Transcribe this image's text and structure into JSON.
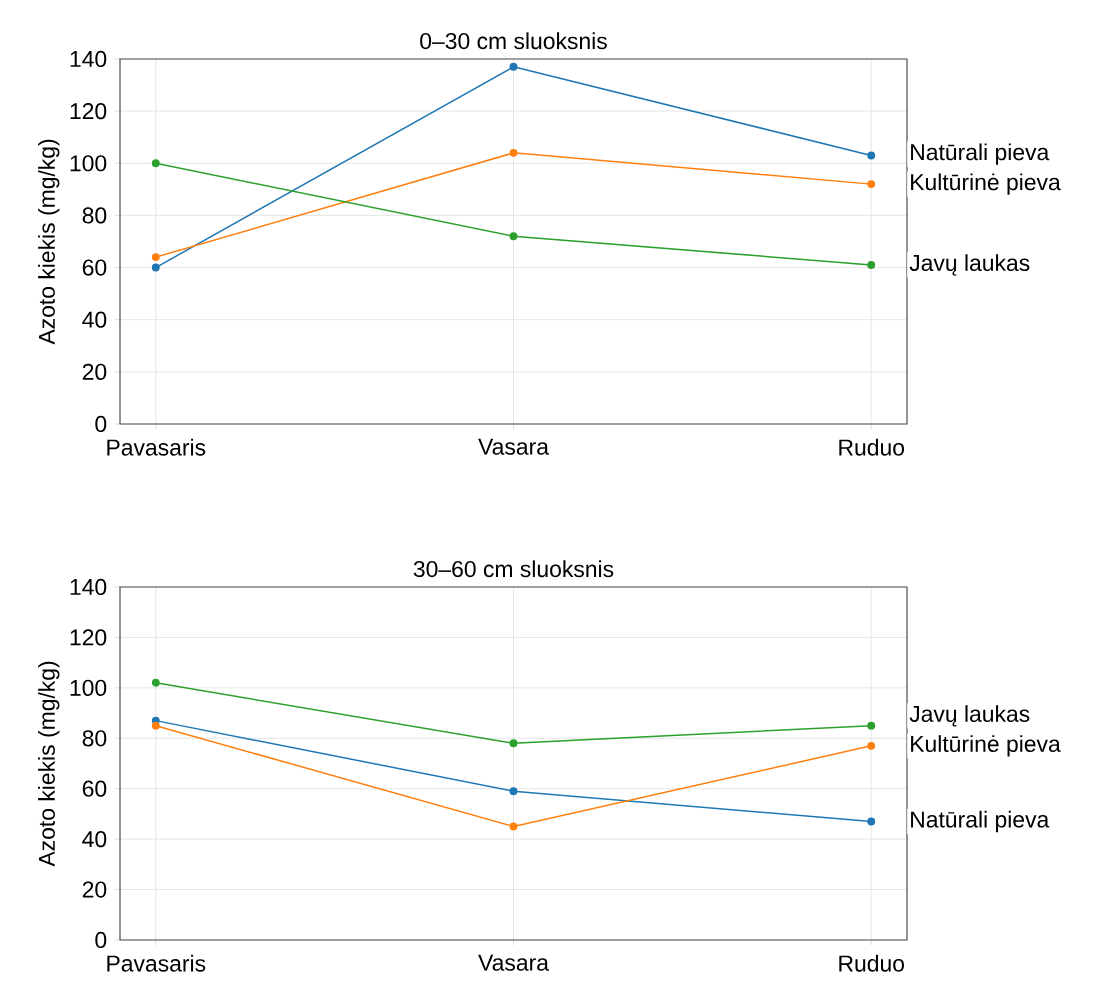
{
  "chart_data": [
    {
      "type": "line",
      "title": "0–30 cm sluoksnis",
      "ylabel": "Azoto kiekis (mg/kg)",
      "categories": [
        "Pavasaris",
        "Vasara",
        "Ruduo"
      ],
      "ylim": [
        0,
        140
      ],
      "yticks": [
        0,
        20,
        40,
        60,
        80,
        100,
        120,
        140
      ],
      "grid": true,
      "marker": "circle",
      "legend": false,
      "series": [
        {
          "name": "Natūrali pieva",
          "color": "#1f77b4",
          "values": [
            60,
            137,
            103
          ]
        },
        {
          "name": "Kultūrinė pieva",
          "color": "#ff7f0e",
          "values": [
            64,
            104,
            92
          ]
        },
        {
          "name": "Javų laukas",
          "color": "#2ca02c",
          "values": [
            100,
            72,
            61
          ]
        }
      ]
    },
    {
      "type": "line",
      "title": "30–60 cm sluoksnis",
      "ylabel": "Azoto kiekis (mg/kg)",
      "categories": [
        "Pavasaris",
        "Vasara",
        "Ruduo"
      ],
      "ylim": [
        0,
        140
      ],
      "yticks": [
        0,
        20,
        40,
        60,
        80,
        100,
        120,
        140
      ],
      "grid": true,
      "marker": "circle",
      "legend": false,
      "series": [
        {
          "name": "Natūrali pieva",
          "color": "#1f77b4",
          "values": [
            87,
            59,
            47
          ]
        },
        {
          "name": "Kultūrinė pieva",
          "color": "#ff7f0e",
          "values": [
            85,
            45,
            77
          ]
        },
        {
          "name": "Javų laukas",
          "color": "#2ca02c",
          "values": [
            102,
            78,
            85
          ]
        }
      ]
    }
  ]
}
